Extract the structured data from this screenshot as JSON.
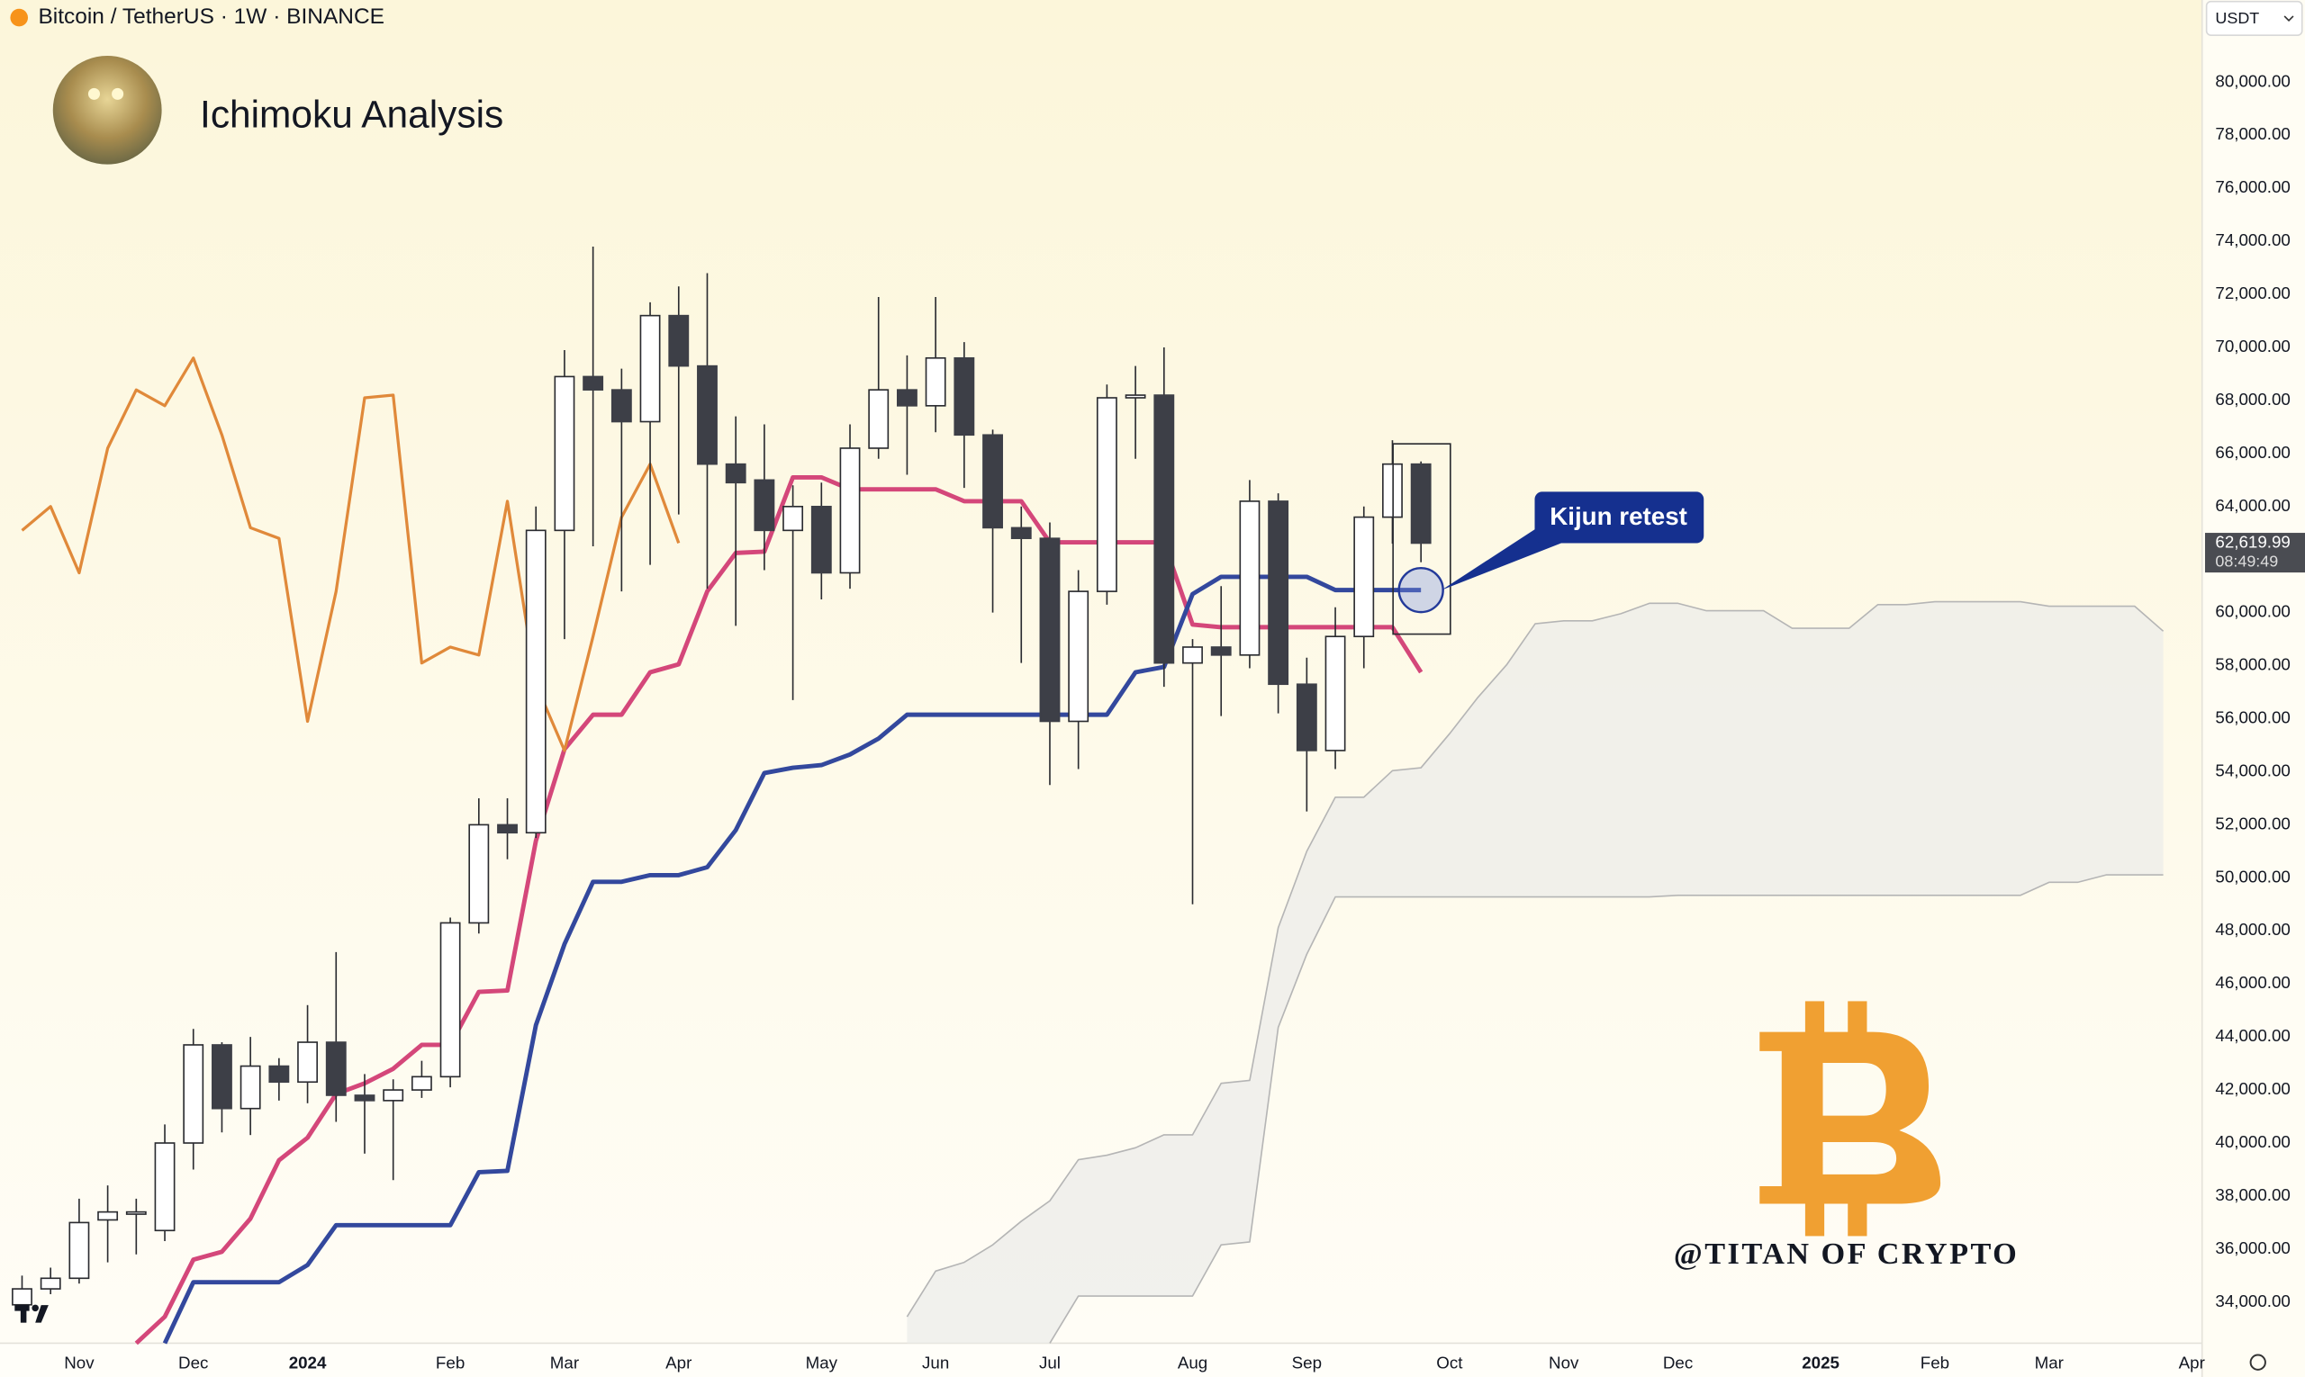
{
  "header": "Bitcoin / TetherUS · 1W · BINANCE",
  "currency": "USDT",
  "chart_data": {
    "type": "candlestick",
    "title": "Ichimoku Analysis",
    "categories": [
      null,
      null,
      "Nov",
      null,
      null,
      null,
      "Dec",
      null,
      null,
      null,
      "2024",
      null,
      null,
      null,
      null,
      "Feb",
      null,
      null,
      null,
      "Mar",
      null,
      null,
      null,
      "Apr",
      null,
      null,
      null,
      null,
      "May",
      null,
      null,
      null,
      "Jun",
      null,
      null,
      null,
      "Jul",
      null,
      null,
      null,
      null,
      "Aug",
      null,
      null,
      null,
      "Sep",
      null,
      null,
      null,
      null,
      "Oct",
      null,
      null,
      null,
      "Nov",
      null,
      null,
      null,
      "Dec",
      null,
      null,
      null,
      null,
      "2025",
      null,
      null,
      null,
      "Feb",
      null,
      null,
      null,
      "Mar",
      null,
      null,
      null,
      null,
      "Apr"
    ],
    "candles": {
      "up_color": "#ffffff",
      "down_color": "#3d3f47",
      "outline_color": "#2a2b30",
      "open": [
        33900,
        34500,
        34900,
        37100,
        37400,
        36700,
        40000,
        43700,
        41300,
        42900,
        42300,
        43800,
        41800,
        41600,
        42000,
        42500,
        48300,
        52000,
        51700,
        63100,
        68900,
        68400,
        67200,
        71200,
        69300,
        65600,
        65000,
        63100,
        64000,
        61500,
        66200,
        68400,
        67800,
        69600,
        66700,
        63200,
        62800,
        55900,
        60800,
        68100,
        68200,
        58100,
        58700,
        58400,
        64200,
        57300,
        54800,
        59100,
        63600,
        65600,
        null,
        null,
        null,
        null,
        null,
        null,
        null,
        null,
        null,
        null,
        null,
        null,
        null,
        null,
        null,
        null,
        null,
        null,
        null,
        null,
        null,
        null,
        null,
        null,
        null,
        null,
        null
      ],
      "high": [
        35000,
        35300,
        37900,
        38400,
        37900,
        40700,
        44300,
        43800,
        44000,
        43200,
        45200,
        47200,
        42600,
        42400,
        43100,
        48500,
        53000,
        53000,
        64000,
        69900,
        73800,
        69200,
        71700,
        72300,
        72800,
        67400,
        67100,
        64800,
        64900,
        67100,
        71900,
        69700,
        71900,
        70200,
        66900,
        64000,
        63400,
        61600,
        68600,
        69300,
        70000,
        59000,
        61000,
        65000,
        64500,
        58300,
        60200,
        64000,
        66500,
        65700,
        null,
        null,
        null,
        null,
        null,
        null,
        null,
        null,
        null,
        null,
        null,
        null,
        null,
        null,
        null,
        null,
        null,
        null,
        null,
        null,
        null,
        null,
        null,
        null,
        null,
        null,
        null
      ],
      "low": [
        33800,
        34300,
        34700,
        35500,
        35800,
        36300,
        39000,
        40400,
        40300,
        41600,
        41500,
        40800,
        39600,
        38600,
        41700,
        42100,
        47900,
        50700,
        51500,
        59000,
        62500,
        60800,
        61800,
        63700,
        60900,
        59500,
        61600,
        56700,
        60500,
        60900,
        65800,
        65200,
        66800,
        64700,
        60000,
        58100,
        53500,
        54100,
        60300,
        65800,
        57200,
        49000,
        56100,
        57900,
        56200,
        52500,
        54100,
        57900,
        62600,
        61900,
        null,
        null,
        null,
        null,
        null,
        null,
        null,
        null,
        null,
        null,
        null,
        null,
        null,
        null,
        null,
        null,
        null,
        null,
        null,
        null,
        null,
        null,
        null,
        null,
        null,
        null,
        null
      ],
      "close": [
        34500,
        34900,
        37000,
        37400,
        37400,
        40000,
        43700,
        41300,
        42900,
        42300,
        43800,
        41800,
        41600,
        42000,
        42500,
        48300,
        52000,
        51700,
        63100,
        68900,
        68400,
        67200,
        71200,
        69300,
        65600,
        64900,
        63100,
        64000,
        61500,
        66200,
        68400,
        67800,
        69600,
        66700,
        63200,
        62800,
        55900,
        60800,
        68100,
        68200,
        58100,
        58700,
        58400,
        64200,
        57300,
        54800,
        59100,
        63600,
        65600,
        62619.99,
        null,
        null,
        null,
        null,
        null,
        null,
        null,
        null,
        null,
        null,
        null,
        null,
        null,
        null,
        null,
        null,
        null,
        null,
        null,
        null,
        null,
        null,
        null,
        null,
        null,
        null,
        null
      ]
    },
    "lines": [
      {
        "color": "#d4477a",
        "width": 3,
        "values": [
          null,
          null,
          null,
          null,
          32450,
          33450,
          35600,
          35900,
          37150,
          39350,
          40200,
          41850,
          42250,
          42800,
          43700,
          43700,
          45700,
          45750,
          51400,
          54850,
          56150,
          56150,
          57750,
          58050,
          60800,
          62250,
          62300,
          65100,
          65100,
          64650,
          64650,
          64650,
          64650,
          64200,
          64200,
          64200,
          62650,
          62650,
          62650,
          62650,
          62650,
          59550,
          59450,
          59450,
          59450,
          59450,
          59450,
          59450,
          59450,
          57750,
          null,
          null,
          null,
          null,
          null,
          null,
          null,
          null,
          null,
          null,
          null,
          null,
          null,
          null,
          null,
          null,
          null,
          null,
          null,
          null,
          null,
          null,
          null,
          null,
          null,
          null,
          null
        ]
      },
      {
        "color": "#33489d",
        "width": 3,
        "values": [
          null,
          null,
          null,
          null,
          null,
          32450,
          34750,
          34750,
          34750,
          34750,
          35400,
          36900,
          36900,
          36900,
          36900,
          36900,
          38900,
          38950,
          44450,
          47500,
          49850,
          49850,
          50100,
          50100,
          50400,
          51800,
          53950,
          54150,
          54250,
          54650,
          55250,
          56150,
          56150,
          56150,
          56150,
          56150,
          56150,
          56150,
          56150,
          57750,
          57950,
          60700,
          61350,
          61350,
          61350,
          61350,
          60850,
          60850,
          60850,
          60850,
          null,
          null,
          null,
          null,
          null,
          null,
          null,
          null,
          null,
          null,
          null,
          null,
          null,
          null,
          null,
          null,
          null,
          null,
          null,
          null,
          null,
          null,
          null,
          null,
          null,
          null,
          null
        ]
      },
      {
        "color": "#e0893a",
        "width": 2,
        "values": [
          63100,
          64000,
          61500,
          66200,
          68400,
          67800,
          69600,
          66700,
          63200,
          62800,
          55900,
          60800,
          68100,
          68200,
          58100,
          58700,
          58400,
          64200,
          57300,
          54800,
          59100,
          63600,
          65600,
          62619.99,
          null,
          null,
          null,
          null,
          null,
          null,
          null,
          null,
          null,
          null,
          null,
          null,
          null,
          null,
          null,
          null,
          null,
          null,
          null,
          null,
          null,
          null,
          null,
          null,
          null,
          null,
          null,
          null,
          null,
          null,
          null,
          null,
          null,
          null,
          null,
          null,
          null,
          null,
          null,
          null,
          null,
          null,
          null,
          null,
          null,
          null,
          null,
          null,
          null,
          null,
          null,
          null,
          null
        ]
      },
      {
        "color": "#b5b5b5",
        "width": 1,
        "values": [
          null,
          null,
          null,
          null,
          null,
          null,
          null,
          null,
          null,
          null,
          null,
          null,
          null,
          null,
          null,
          null,
          null,
          null,
          null,
          null,
          null,
          null,
          null,
          null,
          null,
          null,
          null,
          null,
          null,
          null,
          null,
          33450,
          35170,
          35500,
          36160,
          37050,
          37820,
          39370,
          39540,
          39820,
          40310,
          40310,
          42250,
          42360,
          48120,
          51000,
          53040,
          53040,
          54040,
          54150,
          55430,
          56810,
          58030,
          59580,
          59690,
          59690,
          59960,
          60350,
          60350,
          60070,
          60070,
          60070,
          59410,
          59410,
          59410,
          60300,
          60300,
          60410,
          60410,
          60410,
          60410,
          60240,
          60240,
          60240,
          60240,
          59300,
          null
        ]
      },
      {
        "color": "#b5b5b5",
        "width": 1,
        "values": [
          null,
          null,
          null,
          null,
          null,
          null,
          null,
          null,
          null,
          null,
          null,
          null,
          null,
          null,
          null,
          null,
          null,
          null,
          null,
          null,
          null,
          null,
          null,
          null,
          null,
          null,
          null,
          null,
          null,
          null,
          null,
          null,
          null,
          null,
          null,
          null,
          32450,
          34230,
          34230,
          34230,
          34230,
          34230,
          36160,
          36270,
          44360,
          47120,
          49280,
          49280,
          49280,
          49280,
          49280,
          49280,
          49280,
          49280,
          49280,
          49280,
          49280,
          49280,
          49340,
          49340,
          49340,
          49340,
          49340,
          49340,
          49340,
          49340,
          49340,
          49340,
          49340,
          49340,
          49340,
          49830,
          49830,
          50110,
          50110,
          50110,
          null
        ]
      }
    ],
    "cloud_color": "#ececea",
    "ylim": [
      32450,
      83100
    ],
    "yticks": [
      {
        "value": 34000,
        "label": "34,000.00"
      },
      {
        "value": 36000,
        "label": "36,000.00"
      },
      {
        "value": 38000,
        "label": "38,000.00"
      },
      {
        "value": 40000,
        "label": "40,000.00"
      },
      {
        "value": 42000,
        "label": "42,000.00"
      },
      {
        "value": 44000,
        "label": "44,000.00"
      },
      {
        "value": 46000,
        "label": "46,000.00"
      },
      {
        "value": 48000,
        "label": "48,000.00"
      },
      {
        "value": 50000,
        "label": "50,000.00"
      },
      {
        "value": 52000,
        "label": "52,000.00"
      },
      {
        "value": 54000,
        "label": "54,000.00"
      },
      {
        "value": 56000,
        "label": "56,000.00"
      },
      {
        "value": 58000,
        "label": "58,000.00"
      },
      {
        "value": 60000,
        "label": "60,000.00"
      },
      {
        "value": 62000,
        "label": "62,000.00"
      },
      {
        "value": 64000,
        "label": "64,000.00"
      },
      {
        "value": 66000,
        "label": "66,000.00"
      },
      {
        "value": 68000,
        "label": "68,000.00"
      },
      {
        "value": 70000,
        "label": "70,000.00"
      },
      {
        "value": 72000,
        "label": "72,000.00"
      },
      {
        "value": 74000,
        "label": "74,000.00"
      },
      {
        "value": 76000,
        "label": "76,000.00"
      },
      {
        "value": 78000,
        "label": "78,000.00"
      },
      {
        "value": 80000,
        "label": "80,000.00"
      }
    ],
    "price_label": "62,619.99",
    "countdown": "08:49:49",
    "annotation": "Kijun retest",
    "watermark": "@TITAN OF CRYPTO"
  }
}
